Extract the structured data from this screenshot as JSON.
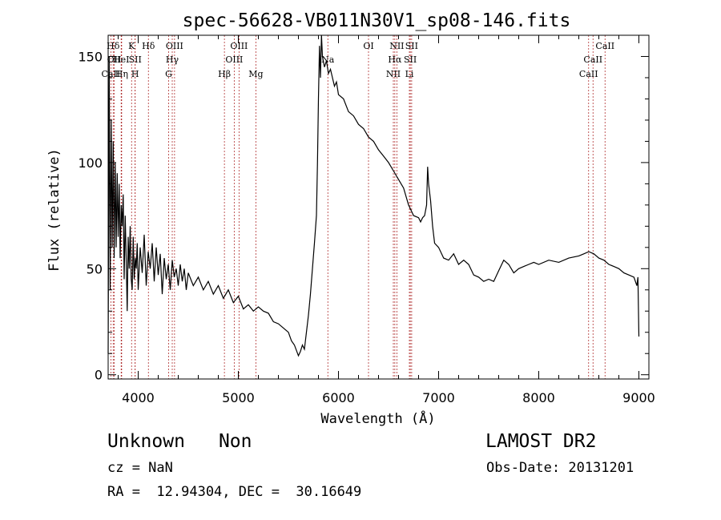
{
  "chart_data": {
    "type": "line",
    "title": "spec-56628-VB011N30V1_sp08-146.fits",
    "xlabel": "Wavelength (Å)",
    "ylabel": "Flux (relative)",
    "xlim": [
      3700,
      9100
    ],
    "ylim": [
      -2,
      160
    ],
    "xticks": [
      4000,
      5000,
      6000,
      7000,
      8000,
      9000
    ],
    "yticks": [
      0,
      50,
      100,
      150
    ],
    "spectrum": [
      [
        3700,
        10
      ],
      [
        3710,
        150
      ],
      [
        3720,
        40
      ],
      [
        3730,
        120
      ],
      [
        3740,
        60
      ],
      [
        3750,
        110
      ],
      [
        3760,
        55
      ],
      [
        3770,
        100
      ],
      [
        3780,
        60
      ],
      [
        3790,
        95
      ],
      [
        3800,
        65
      ],
      [
        3810,
        90
      ],
      [
        3820,
        55
      ],
      [
        3830,
        80
      ],
      [
        3840,
        70
      ],
      [
        3850,
        85
      ],
      [
        3860,
        45
      ],
      [
        3870,
        75
      ],
      [
        3880,
        55
      ],
      [
        3890,
        30
      ],
      [
        3900,
        65
      ],
      [
        3910,
        50
      ],
      [
        3920,
        70
      ],
      [
        3930,
        45
      ],
      [
        3940,
        40
      ],
      [
        3950,
        65
      ],
      [
        3960,
        45
      ],
      [
        3970,
        55
      ],
      [
        3980,
        50
      ],
      [
        3990,
        62
      ],
      [
        4000,
        40
      ],
      [
        4020,
        60
      ],
      [
        4040,
        48
      ],
      [
        4060,
        66
      ],
      [
        4080,
        42
      ],
      [
        4100,
        58
      ],
      [
        4120,
        50
      ],
      [
        4140,
        62
      ],
      [
        4160,
        44
      ],
      [
        4180,
        60
      ],
      [
        4200,
        47
      ],
      [
        4220,
        57
      ],
      [
        4240,
        38
      ],
      [
        4260,
        55
      ],
      [
        4280,
        45
      ],
      [
        4300,
        52
      ],
      [
        4320,
        40
      ],
      [
        4340,
        54
      ],
      [
        4360,
        46
      ],
      [
        4380,
        50
      ],
      [
        4400,
        42
      ],
      [
        4420,
        52
      ],
      [
        4440,
        44
      ],
      [
        4460,
        50
      ],
      [
        4480,
        40
      ],
      [
        4500,
        48
      ],
      [
        4550,
        42
      ],
      [
        4600,
        46
      ],
      [
        4650,
        40
      ],
      [
        4700,
        44
      ],
      [
        4750,
        38
      ],
      [
        4800,
        42
      ],
      [
        4850,
        36
      ],
      [
        4900,
        40
      ],
      [
        4950,
        34
      ],
      [
        5000,
        37
      ],
      [
        5050,
        31
      ],
      [
        5100,
        33
      ],
      [
        5150,
        30
      ],
      [
        5200,
        32
      ],
      [
        5250,
        30
      ],
      [
        5300,
        29
      ],
      [
        5350,
        25
      ],
      [
        5400,
        24
      ],
      [
        5450,
        22
      ],
      [
        5500,
        20
      ],
      [
        5530,
        16
      ],
      [
        5560,
        14
      ],
      [
        5600,
        9
      ],
      [
        5620,
        11
      ],
      [
        5640,
        14
      ],
      [
        5660,
        12
      ],
      [
        5680,
        20
      ],
      [
        5700,
        28
      ],
      [
        5720,
        38
      ],
      [
        5740,
        50
      ],
      [
        5760,
        62
      ],
      [
        5780,
        75
      ],
      [
        5790,
        100
      ],
      [
        5800,
        130
      ],
      [
        5810,
        155
      ],
      [
        5820,
        140
      ],
      [
        5830,
        160
      ],
      [
        5840,
        150
      ],
      [
        5860,
        145
      ],
      [
        5880,
        148
      ],
      [
        5900,
        142
      ],
      [
        5920,
        144
      ],
      [
        5940,
        140
      ],
      [
        5960,
        136
      ],
      [
        5980,
        138
      ],
      [
        6000,
        132
      ],
      [
        6050,
        130
      ],
      [
        6100,
        124
      ],
      [
        6150,
        122
      ],
      [
        6200,
        118
      ],
      [
        6250,
        116
      ],
      [
        6300,
        112
      ],
      [
        6350,
        110
      ],
      [
        6400,
        106
      ],
      [
        6450,
        103
      ],
      [
        6500,
        100
      ],
      [
        6550,
        96
      ],
      [
        6600,
        92
      ],
      [
        6650,
        88
      ],
      [
        6700,
        80
      ],
      [
        6750,
        75
      ],
      [
        6800,
        74
      ],
      [
        6820,
        72
      ],
      [
        6840,
        74
      ],
      [
        6860,
        75
      ],
      [
        6880,
        80
      ],
      [
        6890,
        98
      ],
      [
        6900,
        90
      ],
      [
        6920,
        82
      ],
      [
        6940,
        70
      ],
      [
        6960,
        62
      ],
      [
        7000,
        60
      ],
      [
        7050,
        55
      ],
      [
        7100,
        54
      ],
      [
        7150,
        57
      ],
      [
        7200,
        52
      ],
      [
        7250,
        54
      ],
      [
        7300,
        52
      ],
      [
        7350,
        47
      ],
      [
        7400,
        46
      ],
      [
        7450,
        44
      ],
      [
        7500,
        45
      ],
      [
        7550,
        44
      ],
      [
        7600,
        49
      ],
      [
        7650,
        54
      ],
      [
        7700,
        52
      ],
      [
        7750,
        48
      ],
      [
        7800,
        50
      ],
      [
        7850,
        51
      ],
      [
        7900,
        52
      ],
      [
        7950,
        53
      ],
      [
        8000,
        52
      ],
      [
        8100,
        54
      ],
      [
        8200,
        53
      ],
      [
        8300,
        55
      ],
      [
        8400,
        56
      ],
      [
        8450,
        57
      ],
      [
        8500,
        58
      ],
      [
        8550,
        57
      ],
      [
        8600,
        55
      ],
      [
        8650,
        54
      ],
      [
        8700,
        52
      ],
      [
        8750,
        51
      ],
      [
        8800,
        50
      ],
      [
        8850,
        48
      ],
      [
        8900,
        47
      ],
      [
        8950,
        46
      ],
      [
        8980,
        42
      ],
      [
        8990,
        46
      ],
      [
        9000,
        18
      ]
    ],
    "lines": [
      {
        "label": "CaII",
        "wavelength": 3727,
        "row": 3
      },
      {
        "label": "Hδ",
        "wavelength": 3750,
        "row": 1
      },
      {
        "label": "OII",
        "wavelength": 3760,
        "row": 2
      },
      {
        "label": "HeI",
        "wavelength": 3830,
        "row": 2
      },
      {
        "label": "Hη",
        "wavelength": 3835,
        "row": 3
      },
      {
        "label": "K",
        "wavelength": 3934,
        "row": 1
      },
      {
        "label": "SII",
        "wavelength": 3970,
        "row": 2
      },
      {
        "label": "H",
        "wavelength": 3969,
        "row": 3
      },
      {
        "label": "Hδ",
        "wavelength": 4102,
        "row": 1
      },
      {
        "label": "OIII",
        "wavelength": 4363,
        "row": 1
      },
      {
        "label": "Hγ",
        "wavelength": 4340,
        "row": 2
      },
      {
        "label": "G",
        "wavelength": 4304,
        "row": 3
      },
      {
        "label": "Hβ",
        "wavelength": 4861,
        "row": 3
      },
      {
        "label": "OIII",
        "wavelength": 4959,
        "row": 2
      },
      {
        "label": "OIII",
        "wavelength": 5007,
        "row": 1
      },
      {
        "label": "Mg",
        "wavelength": 5175,
        "row": 3
      },
      {
        "label": "Na",
        "wavelength": 5894,
        "row": 2
      },
      {
        "label": "OI",
        "wavelength": 6300,
        "row": 1
      },
      {
        "label": "NII",
        "wavelength": 6548,
        "row": 3
      },
      {
        "label": "NII",
        "wavelength": 6583,
        "row": 1
      },
      {
        "label": "Hα",
        "wavelength": 6563,
        "row": 2
      },
      {
        "label": "SII",
        "wavelength": 6717,
        "row": 2
      },
      {
        "label": "SII",
        "wavelength": 6731,
        "row": 1
      },
      {
        "label": "Li",
        "wavelength": 6708,
        "row": 3
      },
      {
        "label": "CaII",
        "wavelength": 8498,
        "row": 3
      },
      {
        "label": "CaII",
        "wavelength": 8542,
        "row": 2
      },
      {
        "label": "CaII",
        "wavelength": 8662,
        "row": 1
      }
    ]
  },
  "info": {
    "class": "Unknown",
    "subclass": "Non",
    "survey": "LAMOST DR2",
    "cz": "cz = NaN",
    "obs_date": "Obs-Date: 20131201",
    "radec": "RA =  12.94304, DEC =  30.16649"
  },
  "colors": {
    "spectrum": "#000000",
    "lines": "#b03030",
    "axes": "#000000"
  }
}
